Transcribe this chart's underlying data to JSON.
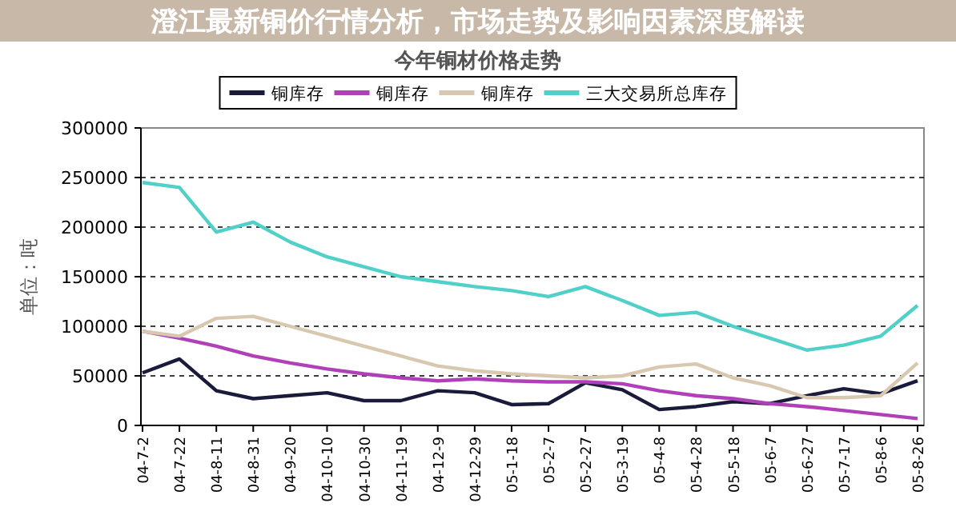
{
  "chart_data": {
    "type": "line",
    "title": "澄江最新铜价行情分析，市场走势及影响因素深度解读",
    "subtitle": "今年铜材价格走势",
    "ylabel": "单位：吨",
    "categories": [
      "04-7-2",
      "04-7-22",
      "04-8-11",
      "04-8-31",
      "04-9-20",
      "04-10-10",
      "04-10-30",
      "04-11-19",
      "04-12-9",
      "04-12-29",
      "05-1-18",
      "05-2-7",
      "05-2-27",
      "05-3-19",
      "05-4-8",
      "05-4-28",
      "05-5-18",
      "05-6-7",
      "05-6-27",
      "05-7-17",
      "05-8-6",
      "05-8-26"
    ],
    "series": [
      {
        "name": "铜库存",
        "color": "#1a1a3a",
        "values": [
          53000,
          67000,
          35000,
          27000,
          30000,
          33000,
          25000,
          25000,
          35000,
          33000,
          21000,
          22000,
          43000,
          36000,
          16000,
          19000,
          24000,
          22000,
          30000,
          37000,
          32000,
          45000
        ]
      },
      {
        "name": "铜库存",
        "color": "#b040b8",
        "values": [
          95000,
          88000,
          80000,
          70000,
          63000,
          57000,
          52000,
          48000,
          45000,
          47000,
          45000,
          44000,
          44000,
          42000,
          35000,
          30000,
          27000,
          22000,
          19000,
          15000,
          11000,
          7000
        ]
      },
      {
        "name": "铜库存",
        "color": "#d8c8b0",
        "values": [
          95000,
          90000,
          108000,
          110000,
          100000,
          90000,
          80000,
          70000,
          60000,
          55000,
          52000,
          50000,
          48000,
          50000,
          59000,
          62000,
          48000,
          40000,
          28000,
          28000,
          30000,
          63000
        ]
      },
      {
        "name": "三大交易所总库存",
        "color": "#50d0c8",
        "values": [
          245000,
          240000,
          195000,
          205000,
          185000,
          170000,
          160000,
          150000,
          145000,
          140000,
          136000,
          130000,
          140000,
          126000,
          111000,
          114000,
          100000,
          88000,
          76000,
          81000,
          90000,
          121000
        ]
      }
    ],
    "ylim": [
      0,
      300000
    ],
    "yticks": [
      0,
      50000,
      100000,
      150000,
      200000,
      250000,
      300000
    ],
    "grid": "y",
    "legend": "top",
    "marker": "none",
    "line_style": "solid"
  }
}
